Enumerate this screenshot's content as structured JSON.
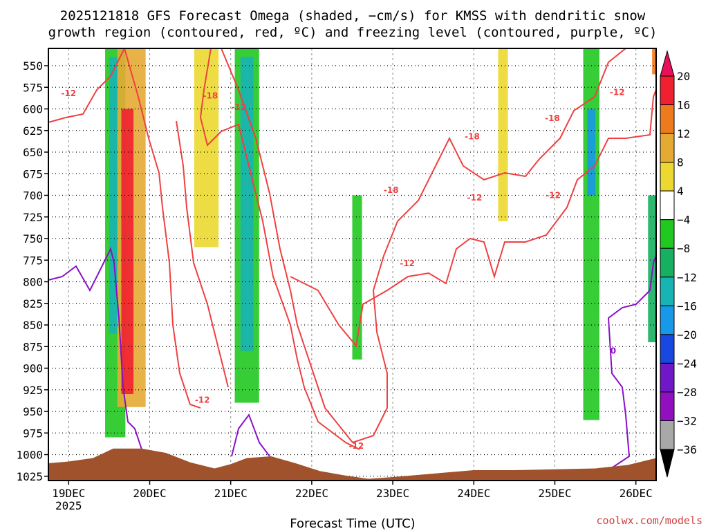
{
  "chart_data": {
    "type": "heatmap",
    "title_line1": "2025121818 GFS Forecast Omega (shaded, −cm/s) for KMSS with dendritic snow",
    "title_line2": "growth region (contoured, red, ºC) and freezing level (contoured, purple, ºC)",
    "xlabel": "Forecast Time (UTC)",
    "ylabel": "",
    "credit": "coolwx.com/models",
    "x_range": [
      18.75,
      26.25
    ],
    "x_ticks": [
      {
        "value": 19,
        "label": "19DEC"
      },
      {
        "value": 20,
        "label": "20DEC"
      },
      {
        "value": 21,
        "label": "21DEC"
      },
      {
        "value": 22,
        "label": "22DEC"
      },
      {
        "value": 23,
        "label": "23DEC"
      },
      {
        "value": 24,
        "label": "24DEC"
      },
      {
        "value": 25,
        "label": "25DEC"
      },
      {
        "value": 26,
        "label": "26DEC"
      }
    ],
    "x_year_label": "2025",
    "y_range": [
      1030,
      530
    ],
    "y_ticks": [
      550,
      575,
      600,
      625,
      650,
      675,
      700,
      725,
      750,
      775,
      800,
      825,
      850,
      875,
      900,
      925,
      950,
      975,
      1000,
      1025
    ],
    "colorbar": {
      "labels": [
        "20",
        "16",
        "12",
        "8",
        "4",
        "−4",
        "−8",
        "−12",
        "−16",
        "−20",
        "−24",
        "−28",
        "−32",
        "−36"
      ],
      "colors": [
        "#e8105a",
        "#f02030",
        "#ee7a1e",
        "#e4aa34",
        "#ecd830",
        "#ffffff",
        "#20c820",
        "#16b060",
        "#18b4b4",
        "#1898e8",
        "#1848e0",
        "#7018c8",
        "#9010c0",
        "#a8a8a8",
        "#000000"
      ]
    },
    "omega_shading": [
      {
        "x": [
          19.45,
          19.7
        ],
        "p": [
          530,
          980
        ],
        "level": -8
      },
      {
        "x": [
          19.5,
          19.62
        ],
        "p": [
          540,
          860
        ],
        "level": -16
      },
      {
        "x": [
          19.6,
          19.95
        ],
        "p": [
          530,
          945
        ],
        "level": 8
      },
      {
        "x": [
          19.65,
          19.8
        ],
        "p": [
          600,
          930
        ],
        "level": 16
      },
      {
        "x": [
          20.55,
          20.85
        ],
        "p": [
          530,
          760
        ],
        "level": 4
      },
      {
        "x": [
          21.05,
          21.35
        ],
        "p": [
          530,
          940
        ],
        "level": -8
      },
      {
        "x": [
          21.12,
          21.28
        ],
        "p": [
          540,
          880
        ],
        "level": -16
      },
      {
        "x": [
          22.5,
          22.62
        ],
        "p": [
          700,
          890
        ],
        "level": -8
      },
      {
        "x": [
          24.3,
          24.42
        ],
        "p": [
          530,
          730
        ],
        "level": 4
      },
      {
        "x": [
          25.35,
          25.55
        ],
        "p": [
          530,
          960
        ],
        "level": -8
      },
      {
        "x": [
          25.4,
          25.5
        ],
        "p": [
          600,
          700
        ],
        "level": -20
      },
      {
        "x": [
          26.15,
          26.25
        ],
        "p": [
          700,
          870
        ],
        "level": -12
      },
      {
        "x": [
          26.2,
          26.25
        ],
        "p": [
          530,
          560
        ],
        "level": 12
      }
    ],
    "contours": [
      {
        "label": "-18",
        "color": "#f04040",
        "kind": "dendritic"
      },
      {
        "label": "-12",
        "color": "#f04040",
        "kind": "dendritic"
      },
      {
        "label": "0",
        "color": "#8a10c8",
        "kind": "freezing"
      }
    ],
    "contour_labels": [
      {
        "x": 19.0,
        "p": 585,
        "text": "-12",
        "color": "#f04040"
      },
      {
        "x": 20.75,
        "p": 588,
        "text": "-18",
        "color": "#f04040"
      },
      {
        "x": 21.1,
        "p": 601,
        "text": "-12",
        "color": "#f04040"
      },
      {
        "x": 20.65,
        "p": 940,
        "text": "-12",
        "color": "#f04040"
      },
      {
        "x": 22.98,
        "p": 697,
        "text": "-18",
        "color": "#f04040"
      },
      {
        "x": 23.18,
        "p": 782,
        "text": "-12",
        "color": "#f04040"
      },
      {
        "x": 23.98,
        "p": 635,
        "text": "-18",
        "color": "#f04040"
      },
      {
        "x": 24.01,
        "p": 706,
        "text": "-12",
        "color": "#f04040"
      },
      {
        "x": 24.97,
        "p": 614,
        "text": "-18",
        "color": "#f04040"
      },
      {
        "x": 24.98,
        "p": 703,
        "text": "-12",
        "color": "#f04040"
      },
      {
        "x": 25.77,
        "p": 584,
        "text": "-12",
        "color": "#f04040"
      },
      {
        "x": 22.55,
        "p": 993,
        "text": "-12",
        "color": "#f04040"
      },
      {
        "x": 25.72,
        "p": 883,
        "text": "0",
        "color": "#8a10c8"
      }
    ],
    "terrain_color": "#a0522d",
    "terrain_surface_pressure": [
      {
        "x": 18.75,
        "p": 1010
      },
      {
        "x": 19.0,
        "p": 1008
      },
      {
        "x": 19.3,
        "p": 1004
      },
      {
        "x": 19.55,
        "p": 993
      },
      {
        "x": 19.9,
        "p": 993
      },
      {
        "x": 20.2,
        "p": 998
      },
      {
        "x": 20.5,
        "p": 1009
      },
      {
        "x": 20.8,
        "p": 1016
      },
      {
        "x": 21.0,
        "p": 1011
      },
      {
        "x": 21.2,
        "p": 1004
      },
      {
        "x": 21.5,
        "p": 1002
      },
      {
        "x": 21.8,
        "p": 1010
      },
      {
        "x": 22.1,
        "p": 1019
      },
      {
        "x": 22.4,
        "p": 1024
      },
      {
        "x": 22.7,
        "p": 1028
      },
      {
        "x": 23.0,
        "p": 1026
      },
      {
        "x": 23.5,
        "p": 1022
      },
      {
        "x": 24.0,
        "p": 1018
      },
      {
        "x": 24.5,
        "p": 1018
      },
      {
        "x": 25.0,
        "p": 1017
      },
      {
        "x": 25.5,
        "p": 1016
      },
      {
        "x": 25.9,
        "p": 1012
      },
      {
        "x": 26.25,
        "p": 1004
      }
    ]
  }
}
